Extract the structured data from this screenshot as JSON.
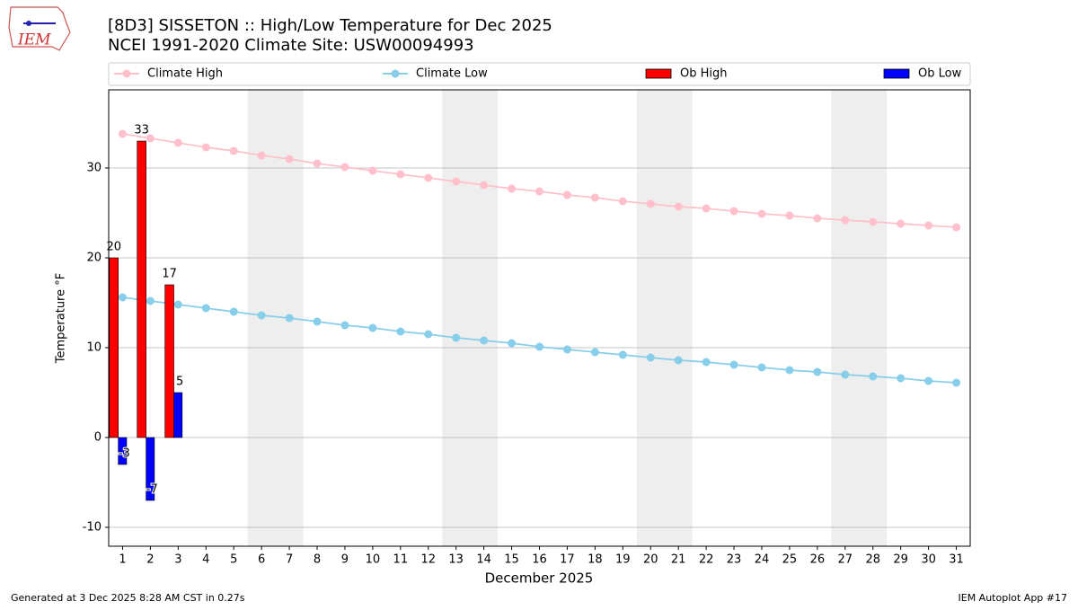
{
  "logo_text": "IEM",
  "footer_left": "Generated at 3 Dec 2025 8:28 AM CST in 0.27s",
  "footer_right": "IEM Autoplot App #17",
  "chart_data": {
    "type": "line",
    "title": "[8D3] SISSETON :: High/Low Temperature for Dec 2025",
    "subtitle": "NCEI 1991-2020 Climate Site: USW00094993",
    "xlabel": "December 2025",
    "ylabel": "Temperature °F",
    "x": [
      1,
      2,
      3,
      4,
      5,
      6,
      7,
      8,
      9,
      10,
      11,
      12,
      13,
      14,
      15,
      16,
      17,
      18,
      19,
      20,
      21,
      22,
      23,
      24,
      25,
      26,
      27,
      28,
      29,
      30,
      31
    ],
    "xlim": [
      0.5,
      31.5
    ],
    "xticks": [
      1,
      2,
      3,
      4,
      5,
      6,
      7,
      8,
      9,
      10,
      11,
      12,
      13,
      14,
      15,
      16,
      17,
      18,
      19,
      20,
      21,
      22,
      23,
      24,
      25,
      26,
      27,
      28,
      29,
      30,
      31
    ],
    "ylim": [
      -12.1,
      38.7
    ],
    "yticks": [
      -10,
      0,
      10,
      20,
      30
    ],
    "grid": true,
    "weekend_spans": [
      [
        5.5,
        7.5
      ],
      [
        12.5,
        14.5
      ],
      [
        19.5,
        21.5
      ],
      [
        26.5,
        28.5
      ]
    ],
    "series": [
      {
        "name": "Climate High",
        "type": "line",
        "color": "#ffc0cb",
        "values": [
          33.8,
          33.3,
          32.8,
          32.3,
          31.9,
          31.4,
          31.0,
          30.5,
          30.1,
          29.7,
          29.3,
          28.9,
          28.5,
          28.1,
          27.7,
          27.4,
          27.0,
          26.7,
          26.3,
          26.0,
          25.7,
          25.5,
          25.2,
          24.9,
          24.7,
          24.4,
          24.2,
          24.0,
          23.8,
          23.6,
          23.4
        ]
      },
      {
        "name": "Climate Low",
        "type": "line",
        "color": "#87ceeb",
        "values": [
          15.6,
          15.2,
          14.8,
          14.4,
          14.0,
          13.6,
          13.3,
          12.9,
          12.5,
          12.2,
          11.8,
          11.5,
          11.1,
          10.8,
          10.5,
          10.1,
          9.8,
          9.5,
          9.2,
          8.9,
          8.6,
          8.4,
          8.1,
          7.8,
          7.5,
          7.3,
          7.0,
          6.8,
          6.6,
          6.3,
          6.1
        ]
      },
      {
        "name": "Ob High",
        "type": "bar",
        "color": "#ff0000",
        "values": [
          20,
          33,
          17,
          null,
          null,
          null,
          null,
          null,
          null,
          null,
          null,
          null,
          null,
          null,
          null,
          null,
          null,
          null,
          null,
          null,
          null,
          null,
          null,
          null,
          null,
          null,
          null,
          null,
          null,
          null,
          null
        ]
      },
      {
        "name": "Ob Low",
        "type": "bar",
        "color": "#0000ff",
        "values": [
          -3,
          -7,
          5,
          null,
          null,
          null,
          null,
          null,
          null,
          null,
          null,
          null,
          null,
          null,
          null,
          null,
          null,
          null,
          null,
          null,
          null,
          null,
          null,
          null,
          null,
          null,
          null,
          null,
          null,
          null,
          null
        ]
      }
    ]
  }
}
